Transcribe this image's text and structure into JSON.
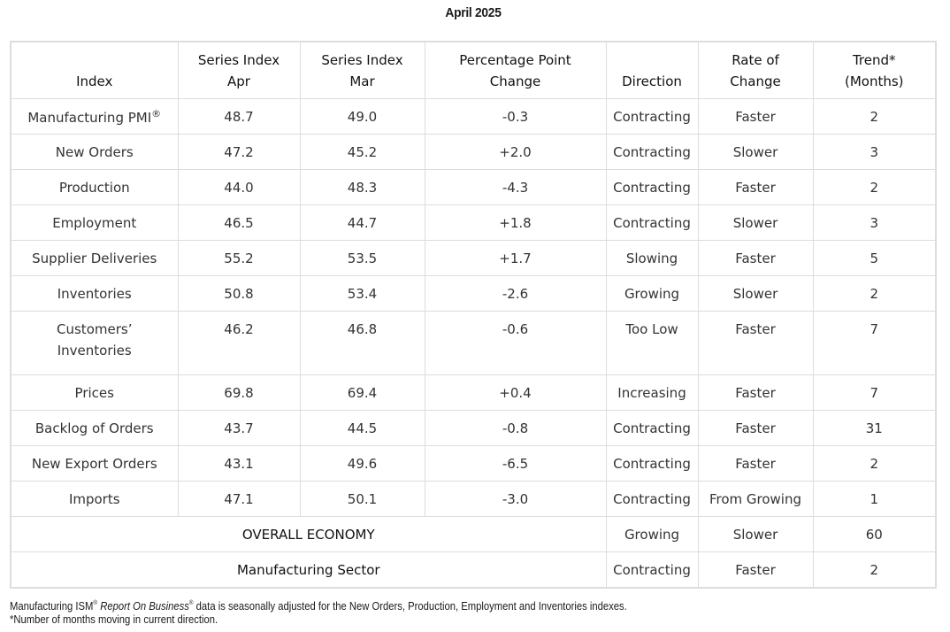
{
  "title": "April 2025",
  "headers": {
    "index": "Index",
    "apr_1": "Series Index",
    "apr_2": "Apr",
    "mar_1": "Series Index",
    "mar_2": "Mar",
    "change_1": "Percentage Point",
    "change_2": "Change",
    "direction": "Direction",
    "rate_1": "Rate of",
    "rate_2": "Change",
    "trend_1": "Trend*",
    "trend_2": "(Months)"
  },
  "rows": [
    {
      "name": "Manufacturing PMI",
      "name_sup": "®",
      "apr": "48.7",
      "mar": "49.0",
      "change": "-0.3",
      "direction": "Contracting",
      "rate": "Faster",
      "trend": "2"
    },
    {
      "name": "New Orders",
      "apr": "47.2",
      "mar": "45.2",
      "change": "+2.0",
      "direction": "Contracting",
      "rate": "Slower",
      "trend": "3"
    },
    {
      "name": "Production",
      "apr": "44.0",
      "mar": "48.3",
      "change": "-4.3",
      "direction": "Contracting",
      "rate": "Faster",
      "trend": "2"
    },
    {
      "name": "Employment",
      "apr": "46.5",
      "mar": "44.7",
      "change": "+1.8",
      "direction": "Contracting",
      "rate": "Slower",
      "trend": "3"
    },
    {
      "name": "Supplier Deliveries",
      "apr": "55.2",
      "mar": "53.5",
      "change": "+1.7",
      "direction": "Slowing",
      "rate": "Faster",
      "trend": "5"
    },
    {
      "name": "Inventories",
      "apr": "50.8",
      "mar": "53.4",
      "change": "-2.6",
      "direction": "Growing",
      "rate": "Slower",
      "trend": "2"
    },
    {
      "name": "Customers’",
      "name_line2": "Inventories",
      "apr": "46.2",
      "mar": "46.8",
      "change": "-0.6",
      "direction": "Too Low",
      "rate": "Faster",
      "trend": "7"
    },
    {
      "name": "Prices",
      "apr": "69.8",
      "mar": "69.4",
      "change": "+0.4",
      "direction": "Increasing",
      "rate": "Faster",
      "trend": "7"
    },
    {
      "name": "Backlog of Orders",
      "apr": "43.7",
      "mar": "44.5",
      "change": "-0.8",
      "direction": "Contracting",
      "rate": "Faster",
      "trend": "31"
    },
    {
      "name": "New Export Orders",
      "apr": "43.1",
      "mar": "49.6",
      "change": "-6.5",
      "direction": "Contracting",
      "rate": "Faster",
      "trend": "2"
    },
    {
      "name": "Imports",
      "apr": "47.1",
      "mar": "50.1",
      "change": "-3.0",
      "direction": "Contracting",
      "rate": "From Growing",
      "trend": "1"
    }
  ],
  "summary": [
    {
      "label": "OVERALL ECONOMY",
      "direction": "Growing",
      "rate": "Slower",
      "trend": "60"
    },
    {
      "label": "Manufacturing Sector",
      "direction": "Contracting",
      "rate": "Faster",
      "trend": "2"
    }
  ],
  "footnote": {
    "part1": "Manufacturing ISM",
    "sup1": "®",
    "italic": "Report On Business",
    "sup2": "®",
    "part2": " data is seasonally adjusted for the New Orders, Production, Employment and Inventories indexes.",
    "line2": "*Number of months moving in current direction."
  }
}
